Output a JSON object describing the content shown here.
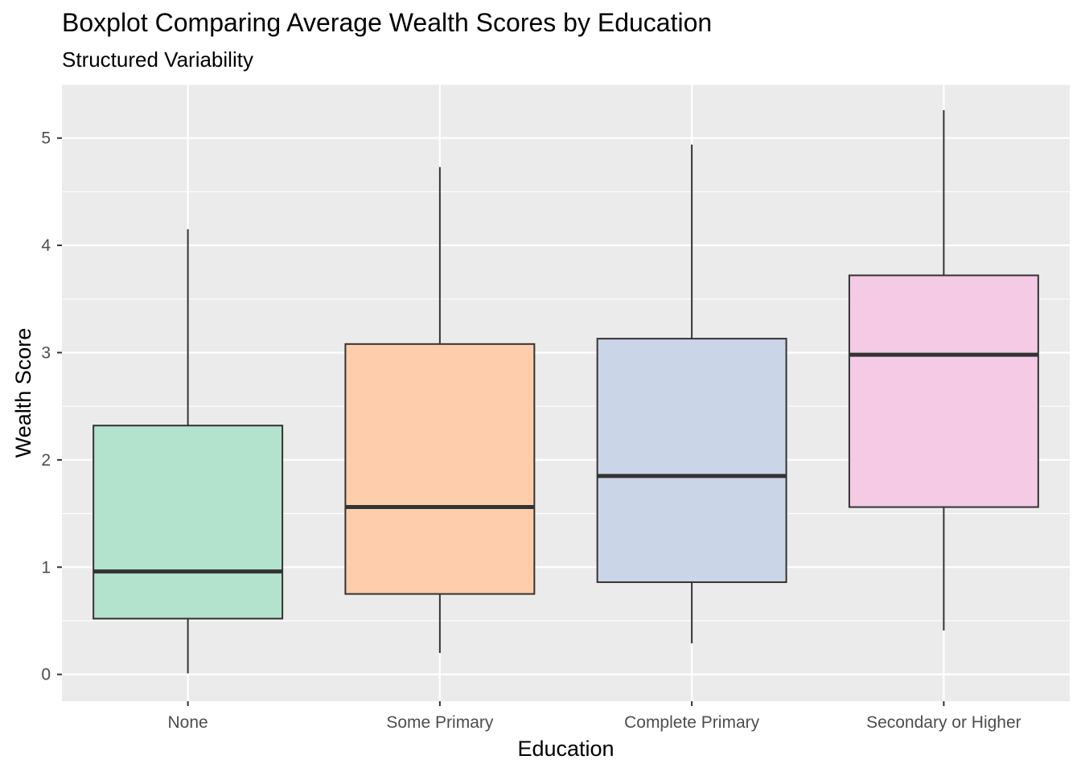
{
  "chart_data": {
    "type": "boxplot",
    "title": "Boxplot Comparing Average Wealth Scores by Education",
    "subtitle": "Structured Variability",
    "xlabel": "Education",
    "ylabel": "Wealth Score",
    "ylim": [
      -0.25,
      5.5
    ],
    "yticks": [
      "0",
      "1",
      "2",
      "3",
      "4",
      "5"
    ],
    "grid": true,
    "categories": [
      "None",
      "Some Primary",
      "Complete Primary",
      "Secondary or Higher"
    ],
    "boxes": [
      {
        "category": "None",
        "min": 0.01,
        "q1": 0.52,
        "median": 0.96,
        "q3": 2.32,
        "max": 4.15,
        "color": "#b3e2cd"
      },
      {
        "category": "Some Primary",
        "min": 0.2,
        "q1": 0.75,
        "median": 1.56,
        "q3": 3.08,
        "max": 4.73,
        "color": "#fdcdac"
      },
      {
        "category": "Complete Primary",
        "min": 0.29,
        "q1": 0.86,
        "median": 1.85,
        "q3": 3.13,
        "max": 4.94,
        "color": "#cbd5e8"
      },
      {
        "category": "Secondary or Higher",
        "min": 0.41,
        "q1": 1.56,
        "median": 2.98,
        "q3": 3.72,
        "max": 5.26,
        "color": "#f4cae4"
      }
    ],
    "panel_color": "#ebebeb",
    "grid_color": "#ffffff",
    "line_color": "#333333"
  }
}
